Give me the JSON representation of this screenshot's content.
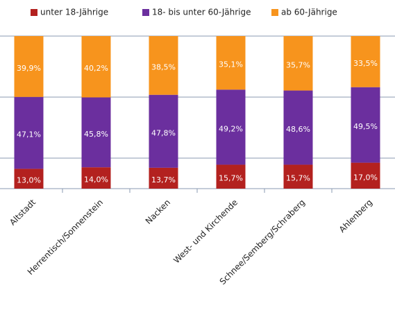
{
  "chart_data": {
    "type": "stacked_bar",
    "categories": [
      "Altstadt",
      "Herrentisch/Sonnenstein",
      "Nacken",
      "West- und Kirchende",
      "Schnee/Semberg/Schraberg",
      "Ahlenberg"
    ],
    "series": [
      {
        "name": "unter 18-Jährige",
        "color": "#b3211f",
        "values": [
          13.0,
          14.0,
          13.7,
          15.7,
          15.7,
          17.0
        ],
        "value_labels": [
          "13,0%",
          "14,0%",
          "13,7%",
          "15,7%",
          "15,7%",
          "17,0%"
        ]
      },
      {
        "name": "18- bis unter 60-Jährige",
        "color": "#6b2f9e",
        "values": [
          47.1,
          45.8,
          47.8,
          49.2,
          48.6,
          49.5
        ],
        "value_labels": [
          "47,1%",
          "45,8%",
          "47,8%",
          "49,2%",
          "48,6%",
          "49,5%"
        ]
      },
      {
        "name": "ab 60-Jährige",
        "color": "#f7941d",
        "values": [
          39.9,
          40.2,
          38.5,
          35.1,
          35.7,
          33.5
        ],
        "value_labels": [
          "39,9%",
          "40,2%",
          "38,5%",
          "35,1%",
          "35,7%",
          "33,5%"
        ]
      }
    ],
    "ylim": [
      0,
      100
    ],
    "yticks": [
      20,
      60,
      100
    ],
    "grid": true
  }
}
